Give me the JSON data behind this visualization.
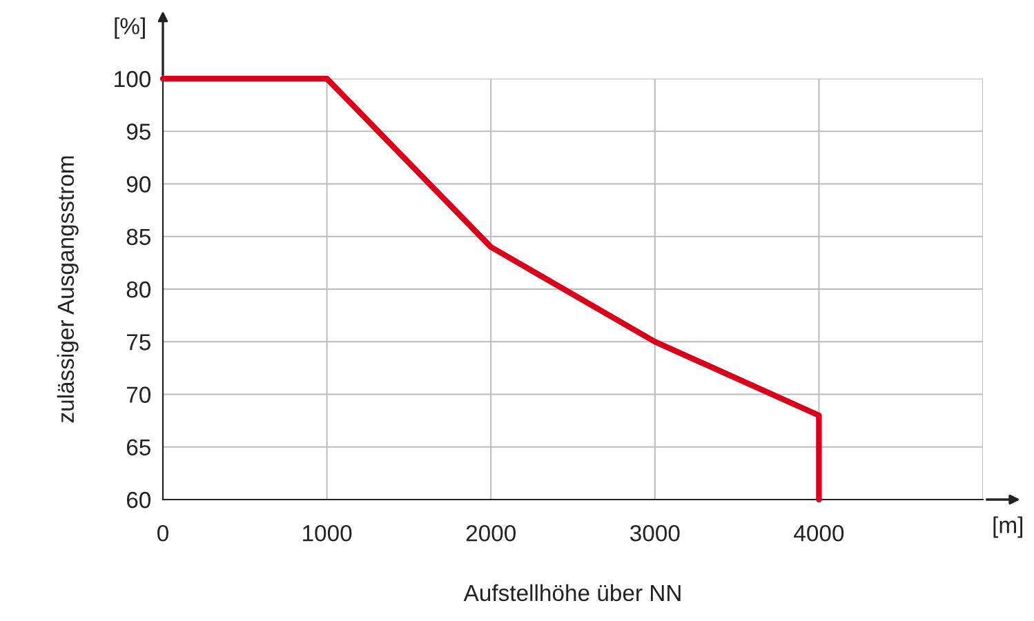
{
  "chart_data": {
    "type": "line",
    "xlabel": "Aufstellhöhe über NN",
    "ylabel": "zulässiger Ausgangsstrom",
    "x": [
      0,
      1000,
      2000,
      3000,
      4000,
      4000
    ],
    "series": [
      {
        "color": "#d9001b",
        "values": [
          100,
          100,
          84,
          75,
          68,
          60
        ]
      }
    ],
    "xlim": [
      0,
      5000
    ],
    "xticks": [
      0,
      1000,
      2000,
      3000,
      4000,
      {
        "value": 5000,
        "label": null
      }
    ],
    "ylim": [
      60,
      100
    ],
    "yticks": [
      60,
      65,
      70,
      75,
      80,
      85,
      90,
      95,
      100
    ],
    "grid": true,
    "legend": false,
    "marker": "none",
    "line_style": "solid",
    "annotations": [
      "[%]",
      "[m]"
    ]
  }
}
